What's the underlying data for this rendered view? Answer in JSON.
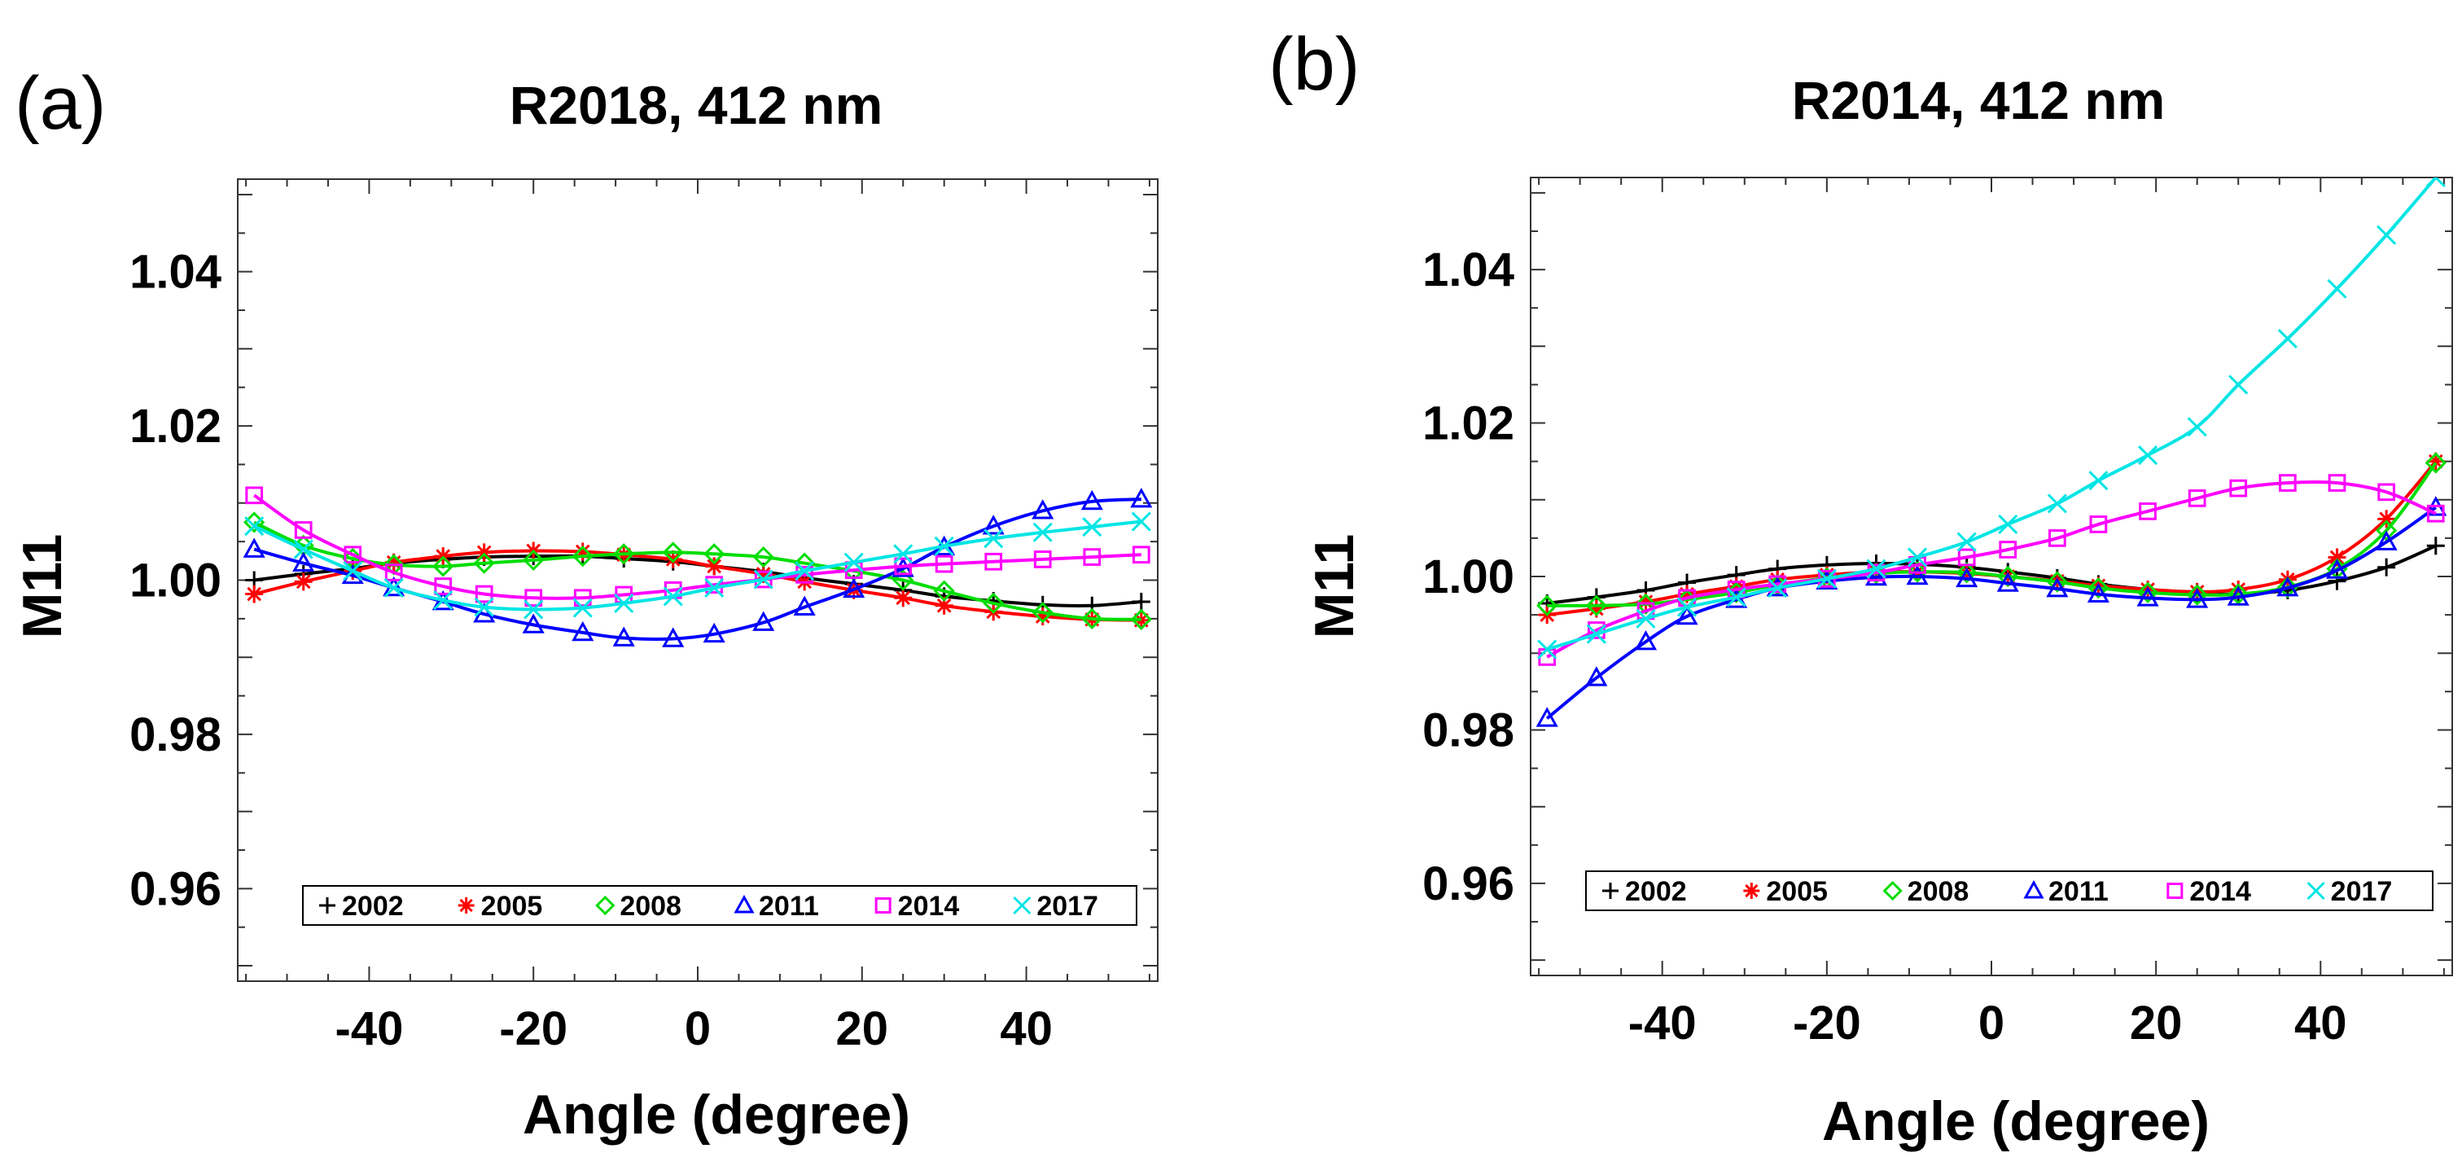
{
  "chart_data": [
    {
      "panel": "(a)",
      "type": "line",
      "title": "R2018, 412 nm",
      "xlabel": "Angle (degree)",
      "ylabel": "M11",
      "xlim": [
        -56,
        56
      ],
      "ylim": [
        0.948,
        1.052
      ],
      "xticks": [
        -40,
        -20,
        0,
        20,
        40
      ],
      "yticks": [
        0.96,
        0.98,
        1.0,
        1.02,
        1.04
      ],
      "ytick_labels": [
        "0.96",
        "0.98",
        "1.00",
        "1.02",
        "1.04"
      ],
      "xtick_labels": [
        "-40",
        "-20",
        "0",
        "20",
        "40"
      ],
      "legend_position": "bottom",
      "x": [
        -54,
        -48,
        -42,
        -37,
        -31,
        -26,
        -20,
        -14,
        -9,
        -3,
        2,
        8,
        13,
        19,
        25,
        30,
        36,
        42,
        48,
        54
      ],
      "series": [
        {
          "name": "2002",
          "color": "#000000",
          "marker": "plus",
          "values": [
            1.0,
            1.0008,
            1.0015,
            1.0022,
            1.0027,
            1.003,
            1.0031,
            1.0031,
            1.0028,
            1.0024,
            1.0018,
            1.0011,
            1.0003,
            0.9995,
            0.9987,
            0.9979,
            0.9973,
            0.9968,
            0.9967,
            0.9972
          ]
        },
        {
          "name": "2005",
          "color": "#ff0000",
          "marker": "asterisk",
          "values": [
            0.9982,
            0.9998,
            1.0012,
            1.0023,
            1.0031,
            1.0036,
            1.0038,
            1.0037,
            1.0033,
            1.0027,
            1.0018,
            1.0008,
            0.9998,
            0.9987,
            0.9977,
            0.9967,
            0.9959,
            0.9953,
            0.9949,
            0.9948
          ]
        },
        {
          "name": "2008",
          "color": "#00dd00",
          "marker": "diamond",
          "values": [
            1.0075,
            1.0045,
            1.0028,
            1.002,
            1.0018,
            1.0022,
            1.0026,
            1.0031,
            1.0034,
            1.0036,
            1.0034,
            1.003,
            1.0022,
            1.0012,
            1.0,
            0.9986,
            0.997,
            0.9958,
            0.995,
            0.9949
          ]
        },
        {
          "name": "2011",
          "color": "#0000ff",
          "marker": "triangle",
          "values": [
            1.004,
            1.0022,
            1.0006,
            0.999,
            0.9972,
            0.9956,
            0.9942,
            0.9932,
            0.9925,
            0.9924,
            0.993,
            0.9945,
            0.9965,
            0.9988,
            1.0015,
            1.0043,
            1.007,
            1.009,
            1.0102,
            1.0105
          ]
        },
        {
          "name": "2014",
          "color": "#ff00ff",
          "marker": "square",
          "values": [
            1.011,
            1.0065,
            1.0033,
            1.001,
            0.9992,
            0.9982,
            0.9977,
            0.9977,
            0.9981,
            0.9987,
            0.9994,
            1.0001,
            1.0007,
            1.0013,
            1.0018,
            1.0021,
            1.0024,
            1.0027,
            1.003,
            1.0033
          ]
        },
        {
          "name": "2017",
          "color": "#00e5e5",
          "marker": "x",
          "values": [
            1.007,
            1.004,
            1.0012,
            0.999,
            0.9974,
            0.9965,
            0.9962,
            0.9964,
            0.997,
            0.9979,
            0.999,
            1.0001,
            1.0012,
            1.0023,
            1.0034,
            1.0044,
            1.0054,
            1.0062,
            1.0069,
            1.0076
          ]
        }
      ]
    },
    {
      "panel": "(b)",
      "type": "line",
      "title": "R2014, 412 nm",
      "xlabel": "Angle (degree)",
      "ylabel": "M11",
      "xlim": [
        -56,
        56
      ],
      "ylim": [
        0.948,
        1.052
      ],
      "xticks": [
        -40,
        -20,
        0,
        20,
        40
      ],
      "yticks": [
        0.96,
        0.98,
        1.0,
        1.02,
        1.04
      ],
      "ytick_labels": [
        "0.96",
        "0.98",
        "1.00",
        "1.02",
        "1.04"
      ],
      "xtick_labels": [
        "-40",
        "-20",
        "0",
        "20",
        "40"
      ],
      "legend_position": "bottom",
      "x": [
        -54,
        -48,
        -42,
        -37,
        -31,
        -26,
        -20,
        -14,
        -9,
        -3,
        2,
        8,
        13,
        19,
        25,
        30,
        36,
        42,
        48,
        54
      ],
      "series": [
        {
          "name": "2002",
          "color": "#000000",
          "marker": "plus",
          "values": [
            0.9965,
            0.9973,
            0.9982,
            0.9992,
            1.0002,
            1.001,
            1.0015,
            1.0017,
            1.0016,
            1.0012,
            1.0006,
            0.9998,
            0.999,
            0.9983,
            0.9978,
            0.9977,
            0.9982,
            0.9994,
            1.0012,
            1.004
          ]
        },
        {
          "name": "2005",
          "color": "#ff0000",
          "marker": "asterisk",
          "values": [
            0.995,
            0.9958,
            0.9967,
            0.9977,
            0.9987,
            0.9996,
            1.0002,
            1.0006,
            1.0006,
            1.0004,
            1.0,
            0.9994,
            0.9988,
            0.9983,
            0.998,
            0.9983,
            0.9996,
            1.0025,
            1.0075,
            1.015
          ]
        },
        {
          "name": "2008",
          "color": "#00dd00",
          "marker": "diamond",
          "values": [
            0.9962,
            0.9962,
            0.9964,
            0.997,
            0.9979,
            0.9989,
            0.9998,
            1.0004,
            1.0006,
            1.0005,
            1.0,
            0.9993,
            0.9985,
            0.9979,
            0.9976,
            0.9977,
            0.9986,
            1.001,
            1.006,
            1.0148
          ]
        },
        {
          "name": "2011",
          "color": "#0000ff",
          "marker": "triangle",
          "values": [
            0.9815,
            0.9868,
            0.9915,
            0.9948,
            0.997,
            0.9985,
            0.9994,
            0.9999,
            1.0,
            0.9997,
            0.9991,
            0.9984,
            0.9977,
            0.9972,
            0.997,
            0.9973,
            0.9985,
            1.0008,
            1.0045,
            1.009
          ]
        },
        {
          "name": "2014",
          "color": "#ff00ff",
          "marker": "square",
          "values": [
            0.9895,
            0.993,
            0.9955,
            0.9972,
            0.9983,
            0.999,
            0.9997,
            1.0005,
            1.0015,
            1.0025,
            1.0035,
            1.005,
            1.0068,
            1.0085,
            1.0102,
            1.0115,
            1.0122,
            1.0122,
            1.011,
            1.0082
          ]
        },
        {
          "name": "2017",
          "color": "#00e5e5",
          "marker": "x",
          "values": [
            0.9905,
            0.9925,
            0.9945,
            0.996,
            0.9973,
            0.9985,
            0.9997,
            1.001,
            1.0025,
            1.0045,
            1.0068,
            1.0095,
            1.0125,
            1.0158,
            1.0195,
            1.025,
            1.031,
            1.0375,
            1.0445,
            1.052
          ]
        }
      ]
    }
  ]
}
